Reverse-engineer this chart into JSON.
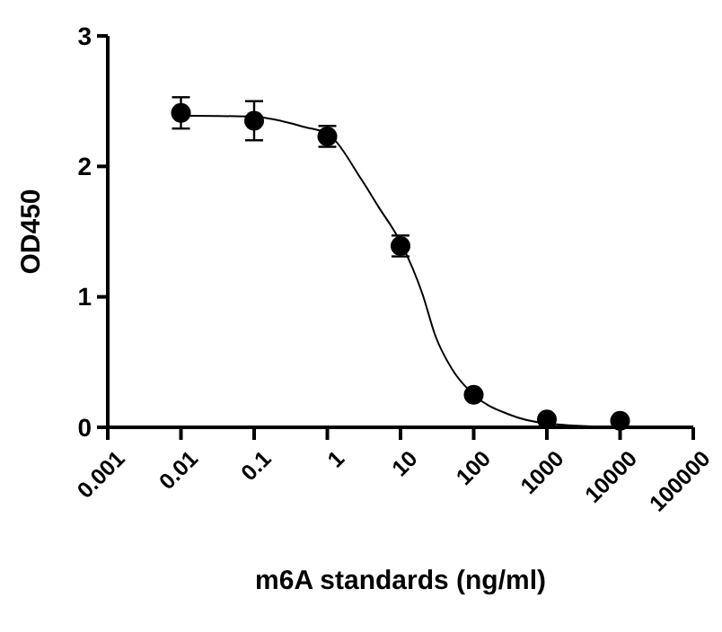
{
  "chart_data": {
    "type": "scatter",
    "xlabel": "m6A standards (ng/ml)",
    "ylabel": "OD450",
    "log": "x",
    "xlim": [
      0.001,
      100000
    ],
    "xticks": [
      0.001,
      0.01,
      0.1,
      1,
      10,
      100,
      1000,
      10000,
      100000
    ],
    "ylim": [
      0,
      3
    ],
    "yticks": [
      0,
      1,
      2,
      3
    ],
    "grid": false,
    "series": [
      {
        "type": "scatter",
        "color": "#000000",
        "marker": "circle",
        "x": [
          0.01,
          0.1,
          1,
          10,
          100,
          1000,
          10000
        ],
        "values": [
          2.41,
          2.35,
          2.23,
          1.39,
          0.25,
          0.06,
          0.05
        ],
        "errors": [
          0.12,
          0.15,
          0.08,
          0.08,
          null,
          null,
          null
        ]
      },
      {
        "type": "line",
        "color": "#000000",
        "marker": "none",
        "line_style": "solid",
        "x": [
          0.01,
          0.1,
          0.5,
          1,
          3,
          5,
          10,
          20,
          30,
          50,
          100,
          300,
          1000,
          10000
        ],
        "values": [
          2.39,
          2.38,
          2.3,
          2.25,
          1.89,
          1.69,
          1.42,
          1.02,
          0.7,
          0.45,
          0.25,
          0.1,
          0.03,
          0.0
        ]
      }
    ]
  }
}
